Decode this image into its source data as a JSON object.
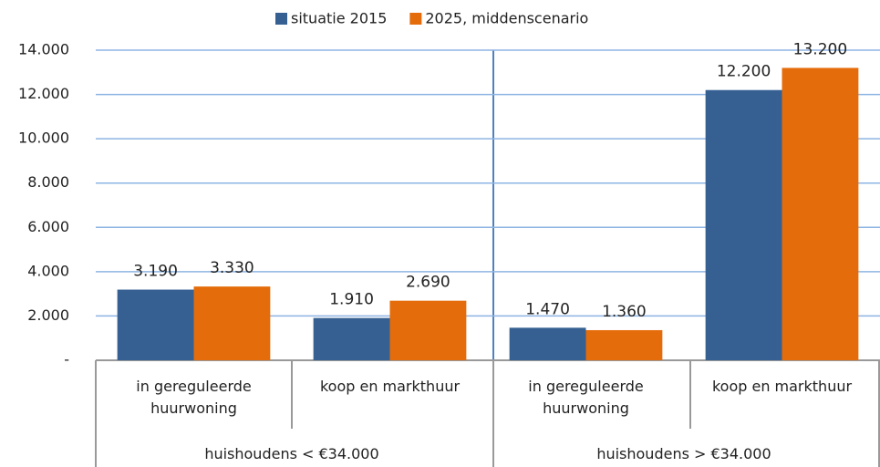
{
  "chart_data": {
    "type": "bar",
    "categories": [
      "in gereguleerde huurwoning",
      "koop en markthuur",
      "in gereguleerde huurwoning",
      "koop en markthuur"
    ],
    "groups": [
      "huishoudens < €34.000",
      "huishoudens > €34.000"
    ],
    "series": [
      {
        "name": "situatie 2015",
        "color": "#366092",
        "values": [
          3190,
          1910,
          1470,
          12200
        ],
        "value_labels": [
          "3.190",
          "1.910",
          "1.470",
          "12.200"
        ]
      },
      {
        "name": "2025, middenscenario",
        "color": "#e46c0a",
        "values": [
          3330,
          2690,
          1360,
          13200
        ],
        "value_labels": [
          "3.330",
          "2.690",
          "1.360",
          "13.200"
        ]
      }
    ],
    "ylim": [
      0,
      14000
    ],
    "yticks": [
      {
        "value": 0,
        "label": "-"
      },
      {
        "value": 2000,
        "label": "2.000"
      },
      {
        "value": 4000,
        "label": "4.000"
      },
      {
        "value": 6000,
        "label": "6.000"
      },
      {
        "value": 8000,
        "label": "8.000"
      },
      {
        "value": 10000,
        "label": "10.000"
      },
      {
        "value": 12000,
        "label": "12.000"
      },
      {
        "value": 14000,
        "label": "14.000"
      }
    ],
    "grid": true,
    "legend": "top"
  }
}
